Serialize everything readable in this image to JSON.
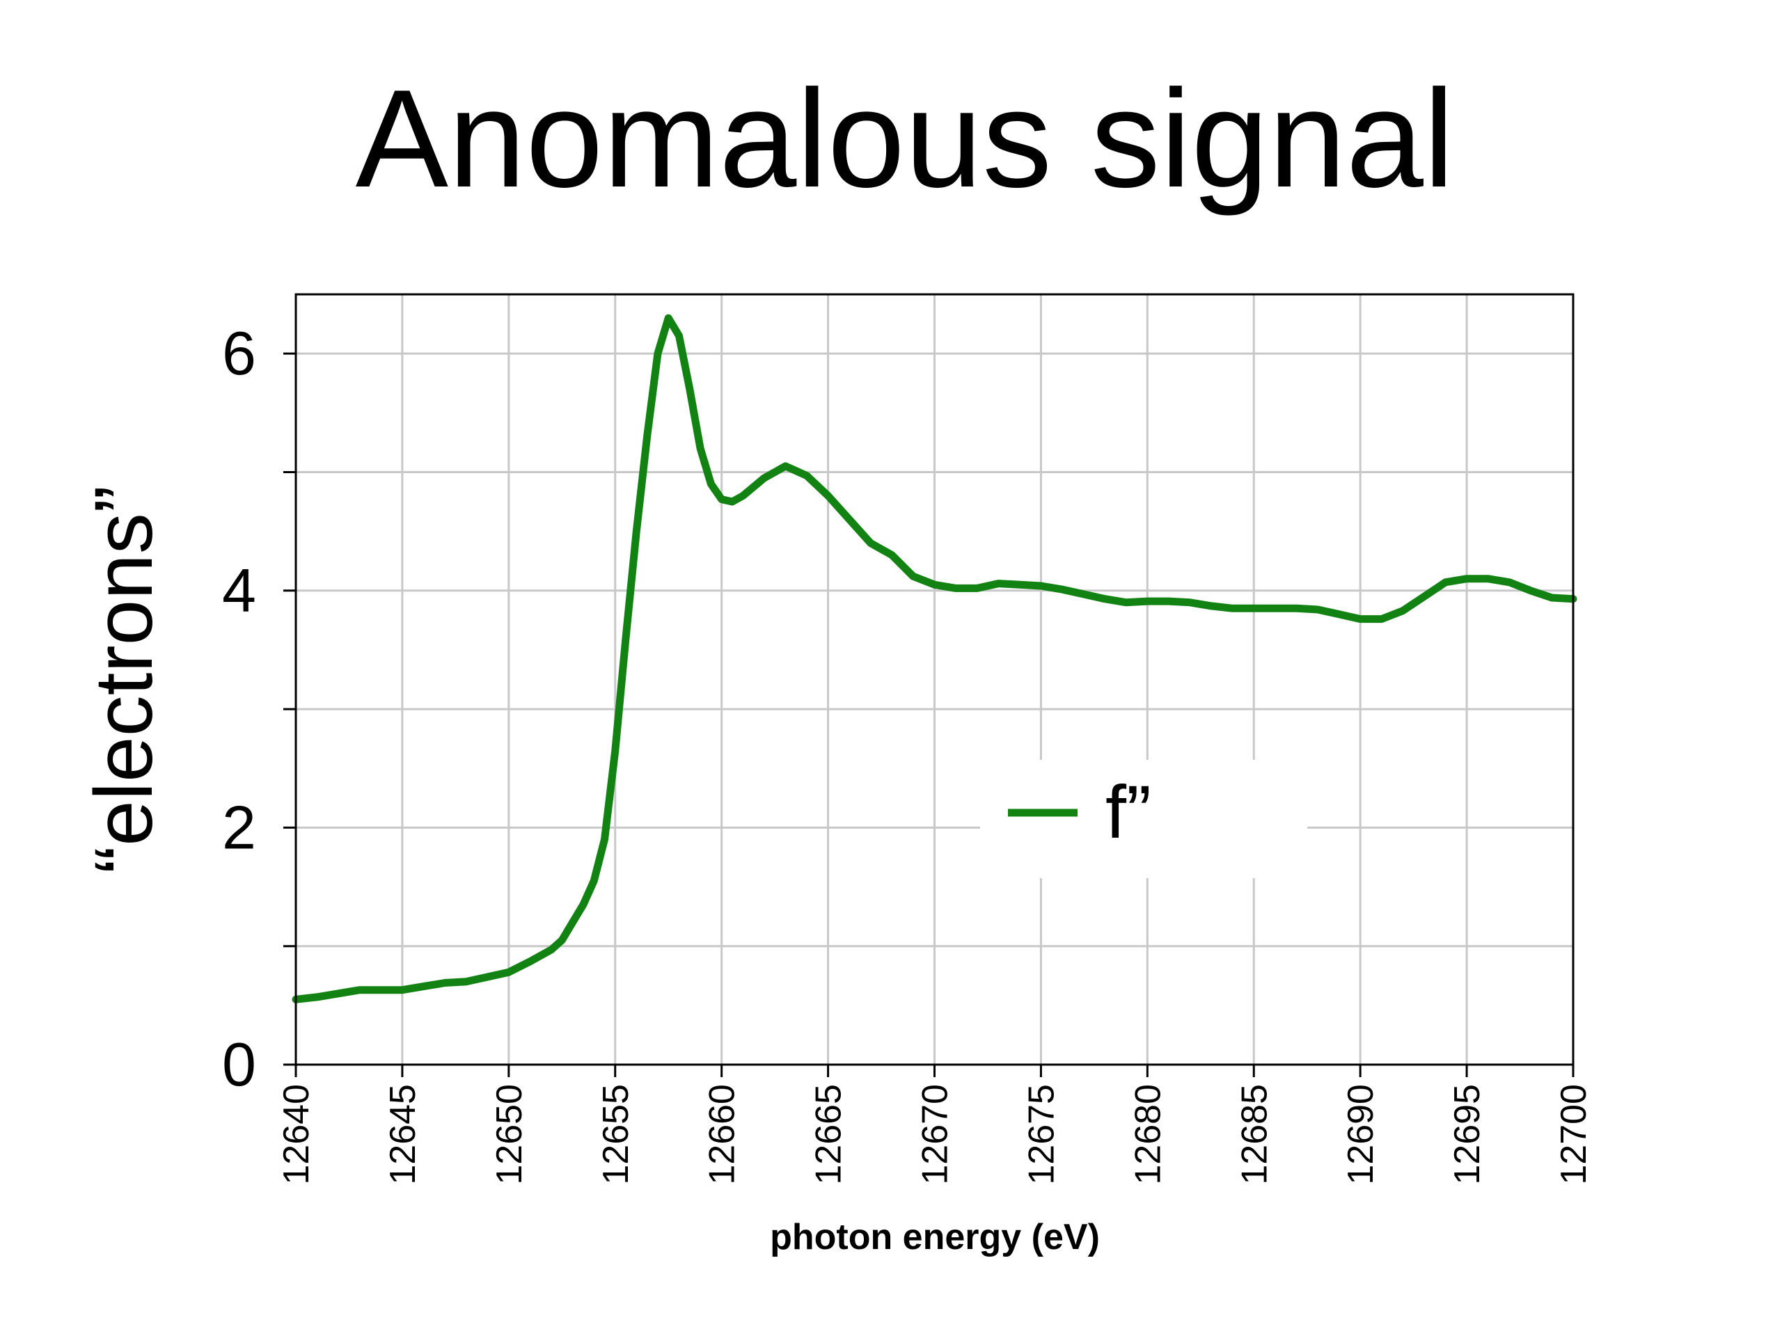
{
  "title": "Anomalous signal",
  "chart_data": {
    "type": "line",
    "title": "Anomalous signal",
    "xlabel": "photon energy (eV)",
    "ylabel": "“electrons”",
    "xlim": [
      12640,
      12700
    ],
    "ylim": [
      0,
      6.5
    ],
    "x_ticks": [
      "12640",
      "12645",
      "12650",
      "12655",
      "12660",
      "12665",
      "12670",
      "12675",
      "12680",
      "12685",
      "12690",
      "12695",
      "12700"
    ],
    "y_ticks": [
      "0",
      "2",
      "4",
      "6"
    ],
    "y_minor_ticks": [
      1,
      3,
      5
    ],
    "grid": true,
    "legend": {
      "position": "center-right",
      "entries": [
        "f”"
      ]
    },
    "series": [
      {
        "name": "f”",
        "color": "#128212",
        "x": [
          12640,
          12641,
          12642,
          12643,
          12644,
          12645,
          12646,
          12647,
          12648,
          12649,
          12650,
          12651,
          12652,
          12652.5,
          12653,
          12653.5,
          12654,
          12654.5,
          12655,
          12655.5,
          12656,
          12656.5,
          12657,
          12657.5,
          12658,
          12658.5,
          12659,
          12659.5,
          12660,
          12660.5,
          12661,
          12662,
          12663,
          12664,
          12665,
          12666,
          12667,
          12668,
          12669,
          12670,
          12671,
          12672,
          12673,
          12674,
          12675,
          12676,
          12677,
          12678,
          12679,
          12680,
          12681,
          12682,
          12683,
          12684,
          12685,
          12686,
          12687,
          12688,
          12689,
          12690,
          12691,
          12692,
          12693,
          12694,
          12695,
          12696,
          12697,
          12698,
          12699,
          12700
        ],
        "y": [
          0.55,
          0.57,
          0.6,
          0.63,
          0.63,
          0.63,
          0.66,
          0.69,
          0.7,
          0.74,
          0.78,
          0.87,
          0.97,
          1.05,
          1.2,
          1.35,
          1.55,
          1.9,
          2.65,
          3.6,
          4.5,
          5.3,
          6.0,
          6.3,
          6.15,
          5.7,
          5.2,
          4.9,
          4.77,
          4.75,
          4.8,
          4.95,
          5.05,
          4.97,
          4.8,
          4.6,
          4.4,
          4.3,
          4.12,
          4.05,
          4.02,
          4.02,
          4.06,
          4.05,
          4.04,
          4.01,
          3.97,
          3.93,
          3.9,
          3.91,
          3.91,
          3.9,
          3.87,
          3.85,
          3.85,
          3.85,
          3.85,
          3.84,
          3.8,
          3.76,
          3.76,
          3.83,
          3.95,
          4.07,
          4.1,
          4.1,
          4.07,
          4.0,
          3.94,
          3.93
        ]
      }
    ]
  }
}
